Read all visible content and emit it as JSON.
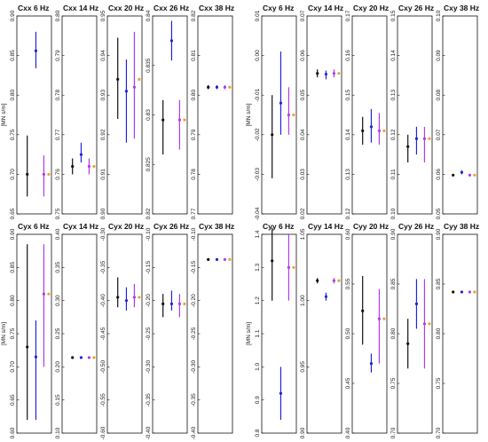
{
  "chart_data": [
    {
      "type": "errorbar",
      "title": "Cxx 6 Hz",
      "ylabel": "[MN s/m]",
      "ylim": [
        0.65,
        0.9
      ],
      "yticks": [
        "0.65",
        "0.70",
        "0.75",
        "0.80",
        "0.85",
        "0.90"
      ],
      "series": [
        {
          "color": "#111111",
          "value": 0.7,
          "low": 0.672,
          "high": 0.749
        },
        {
          "color": "#2222dd",
          "value": 0.856,
          "low": 0.834,
          "high": 0.88
        },
        {
          "color": "#b03af0",
          "value": 0.7,
          "low": 0.672,
          "high": 0.724
        },
        {
          "color": "#e8a33a",
          "value": 0.7,
          "low": 0.7,
          "high": 0.7
        }
      ]
    },
    {
      "type": "errorbar",
      "title": "Cxx 14 Hz",
      "ylabel": "",
      "ylim": [
        0.75,
        0.8
      ],
      "yticks": [
        "0.75",
        "0.76",
        "0.77",
        "0.78",
        "0.79",
        "0.80"
      ],
      "series": [
        {
          "color": "#111111",
          "value": 0.762,
          "low": 0.76,
          "high": 0.764
        },
        {
          "color": "#2222dd",
          "value": 0.765,
          "low": 0.763,
          "high": 0.768
        },
        {
          "color": "#b03af0",
          "value": 0.762,
          "low": 0.76,
          "high": 0.764
        },
        {
          "color": "#e8a33a",
          "value": 0.762,
          "low": 0.762,
          "high": 0.762
        }
      ]
    },
    {
      "type": "errorbar",
      "title": "Cxx 20 Hz",
      "ylabel": "",
      "ylim": [
        0.9,
        0.95
      ],
      "yticks": [
        "0.90",
        "0.91",
        "0.92",
        "0.93",
        "0.94",
        "0.95"
      ],
      "series": [
        {
          "color": "#111111",
          "value": 0.934,
          "low": 0.924,
          "high": 0.9445
        },
        {
          "color": "#2222dd",
          "value": 0.931,
          "low": 0.918,
          "high": 0.939
        },
        {
          "color": "#b03af0",
          "value": 0.932,
          "low": 0.919,
          "high": 0.946
        },
        {
          "color": "#e8a33a",
          "value": 0.934,
          "low": 0.934,
          "high": 0.934
        }
      ]
    },
    {
      "type": "errorbar",
      "title": "Cxx 26 Hz",
      "ylabel": "",
      "ylim": [
        0.82,
        0.84
      ],
      "yticks": [
        "0.82",
        "0.825",
        "0.83",
        "0.835",
        "0.84"
      ],
      "series": [
        {
          "color": "#111111",
          "value": 0.8295,
          "low": 0.826,
          "high": 0.8315
        },
        {
          "color": "#2222dd",
          "value": 0.8375,
          "low": 0.8355,
          "high": 0.8395
        },
        {
          "color": "#b03af0",
          "value": 0.8295,
          "low": 0.8265,
          "high": 0.8315
        },
        {
          "color": "#e8a33a",
          "value": 0.8295,
          "low": 0.8295,
          "high": 0.8295
        }
      ]
    },
    {
      "type": "errorbar",
      "title": "Cxx 38 Hz",
      "ylabel": "",
      "ylim": [
        0.77,
        0.82
      ],
      "yticks": [
        "0.77",
        "0.78",
        "0.79",
        "0.80",
        "0.81",
        "0.82"
      ],
      "series": [
        {
          "color": "#111111",
          "value": 0.802,
          "low": 0.8015,
          "high": 0.8025
        },
        {
          "color": "#2222dd",
          "value": 0.802,
          "low": 0.8015,
          "high": 0.8025
        },
        {
          "color": "#b03af0",
          "value": 0.802,
          "low": 0.8015,
          "high": 0.8025
        },
        {
          "color": "#e8a33a",
          "value": 0.802,
          "low": 0.802,
          "high": 0.802
        }
      ]
    },
    {
      "type": "errorbar",
      "title": "Cxy 6 Hz",
      "ylabel": "[MN s/m]",
      "ylim": [
        -0.04,
        0.01
      ],
      "yticks": [
        "-0.04",
        "-0.03",
        "-0.02",
        "-0.01",
        "0.00",
        "0.01"
      ],
      "series": [
        {
          "color": "#111111",
          "value": -0.02,
          "low": -0.031,
          "high": -0.01
        },
        {
          "color": "#2222dd",
          "value": -0.012,
          "low": -0.02,
          "high": 0.001
        },
        {
          "color": "#b03af0",
          "value": -0.015,
          "low": -0.02,
          "high": -0.008
        },
        {
          "color": "#e8a33a",
          "value": -0.015,
          "low": -0.015,
          "high": -0.015
        }
      ]
    },
    {
      "type": "errorbar",
      "title": "Cxy 14 Hz",
      "ylabel": "",
      "ylim": [
        0.02,
        0.07
      ],
      "yticks": [
        "0.02",
        "0.03",
        "0.04",
        "0.05",
        "0.06",
        "0.07"
      ],
      "series": [
        {
          "color": "#111111",
          "value": 0.0555,
          "low": 0.0545,
          "high": 0.0565
        },
        {
          "color": "#2222dd",
          "value": 0.0553,
          "low": 0.054,
          "high": 0.0562
        },
        {
          "color": "#b03af0",
          "value": 0.0555,
          "low": 0.0545,
          "high": 0.0565
        },
        {
          "color": "#e8a33a",
          "value": 0.0555,
          "low": 0.0555,
          "high": 0.0555
        }
      ]
    },
    {
      "type": "errorbar",
      "title": "Cxy 20 Hz",
      "ylabel": "",
      "ylim": [
        0.12,
        0.17
      ],
      "yticks": [
        "0.12",
        "0.13",
        "0.14",
        "0.15",
        "0.16",
        "0.17"
      ],
      "series": [
        {
          "color": "#111111",
          "value": 0.141,
          "low": 0.1375,
          "high": 0.1445
        },
        {
          "color": "#2222dd",
          "value": 0.142,
          "low": 0.138,
          "high": 0.1465
        },
        {
          "color": "#b03af0",
          "value": 0.141,
          "low": 0.1375,
          "high": 0.1455
        },
        {
          "color": "#e8a33a",
          "value": 0.141,
          "low": 0.141,
          "high": 0.141
        }
      ]
    },
    {
      "type": "errorbar",
      "title": "Cxy 26 Hz",
      "ylabel": "",
      "ylim": [
        0.1,
        0.15
      ],
      "yticks": [
        "0.10",
        "0.11",
        "0.12",
        "0.13",
        "0.14",
        "0.15"
      ],
      "series": [
        {
          "color": "#111111",
          "value": 0.117,
          "low": 0.113,
          "high": 0.12
        },
        {
          "color": "#2222dd",
          "value": 0.119,
          "low": 0.115,
          "high": 0.122
        },
        {
          "color": "#b03af0",
          "value": 0.119,
          "low": 0.113,
          "high": 0.122
        },
        {
          "color": "#e8a33a",
          "value": 0.119,
          "low": 0.119,
          "high": 0.119
        }
      ]
    },
    {
      "type": "errorbar",
      "title": "Cxy 38 Hz",
      "ylabel": "",
      "ylim": [
        0.05,
        0.1
      ],
      "yticks": [
        "0.05",
        "0.06",
        "0.07",
        "0.08",
        "0.09",
        "0.10"
      ],
      "series": [
        {
          "color": "#111111",
          "value": 0.0598,
          "low": 0.0595,
          "high": 0.0601
        },
        {
          "color": "#2222dd",
          "value": 0.0605,
          "low": 0.06,
          "high": 0.061
        },
        {
          "color": "#b03af0",
          "value": 0.0598,
          "low": 0.0595,
          "high": 0.0601
        },
        {
          "color": "#e8a33a",
          "value": 0.0598,
          "low": 0.0598,
          "high": 0.0598
        }
      ]
    },
    {
      "type": "errorbar",
      "title": "Cyx 6 Hz",
      "ylabel": "[MN s/m]",
      "ylim": [
        0.6,
        0.9
      ],
      "yticks": [
        "0.60",
        "0.65",
        "0.70",
        "0.75",
        "0.80",
        "0.85",
        "0.90"
      ],
      "series": [
        {
          "color": "#111111",
          "value": 0.73,
          "low": 0.62,
          "high": 0.885
        },
        {
          "color": "#2222dd",
          "value": 0.715,
          "low": 0.62,
          "high": 0.77
        },
        {
          "color": "#b03af0",
          "value": 0.81,
          "low": 0.7,
          "high": 0.885
        },
        {
          "color": "#e8a33a",
          "value": 0.81,
          "low": 0.81,
          "high": 0.81
        }
      ]
    },
    {
      "type": "errorbar",
      "title": "Cyx 14 Hz",
      "ylabel": "",
      "ylim": [
        0.1,
        0.4
      ],
      "yticks": [
        "0.10",
        "0.15",
        "0.20",
        "0.25",
        "0.30",
        "0.35",
        "0.40"
      ],
      "series": [
        {
          "color": "#111111",
          "value": 0.214,
          "low": 0.213,
          "high": 0.215
        },
        {
          "color": "#2222dd",
          "value": 0.214,
          "low": 0.213,
          "high": 0.215
        },
        {
          "color": "#b03af0",
          "value": 0.214,
          "low": 0.213,
          "high": 0.215
        },
        {
          "color": "#e8a33a",
          "value": 0.214,
          "low": 0.214,
          "high": 0.214
        }
      ]
    },
    {
      "type": "errorbar",
      "title": "Cyx 20 Hz",
      "ylabel": "",
      "ylim": [
        -0.6,
        -0.3
      ],
      "yticks": [
        "-0.60",
        "-0.55",
        "-0.50",
        "-0.45",
        "-0.40",
        "-0.35",
        "-0.30"
      ],
      "series": [
        {
          "color": "#111111",
          "value": -0.395,
          "low": -0.41,
          "high": -0.365
        },
        {
          "color": "#2222dd",
          "value": -0.4,
          "low": -0.415,
          "high": -0.38
        },
        {
          "color": "#b03af0",
          "value": -0.395,
          "low": -0.41,
          "high": -0.375
        },
        {
          "color": "#e8a33a",
          "value": -0.395,
          "low": -0.395,
          "high": -0.395
        }
      ]
    },
    {
      "type": "errorbar",
      "title": "Cyx 26 Hz",
      "ylabel": "",
      "ylim": [
        -0.4,
        -0.1
      ],
      "yticks": [
        "-0.40",
        "-0.35",
        "-0.30",
        "-0.25",
        "-0.20",
        "-0.15",
        "-0.10"
      ],
      "series": [
        {
          "color": "#111111",
          "value": -0.205,
          "low": -0.225,
          "high": -0.19
        },
        {
          "color": "#2222dd",
          "value": -0.205,
          "low": -0.215,
          "high": -0.185
        },
        {
          "color": "#b03af0",
          "value": -0.205,
          "low": -0.225,
          "high": -0.19
        },
        {
          "color": "#e8a33a",
          "value": -0.205,
          "low": -0.205,
          "high": -0.205
        }
      ]
    },
    {
      "type": "errorbar",
      "title": "Cyx 38 Hz",
      "ylabel": "",
      "ylim": [
        -0.4,
        -0.1
      ],
      "yticks": [
        "-0.40",
        "-0.35",
        "-0.30",
        "-0.25",
        "-0.20",
        "-0.15",
        "-0.10"
      ],
      "series": [
        {
          "color": "#111111",
          "value": -0.138,
          "low": -0.138,
          "high": -0.138
        },
        {
          "color": "#2222dd",
          "value": -0.138,
          "low": -0.138,
          "high": -0.138
        },
        {
          "color": "#b03af0",
          "value": -0.138,
          "low": -0.138,
          "high": -0.138
        },
        {
          "color": "#e8a33a",
          "value": -0.138,
          "low": -0.138,
          "high": -0.138
        }
      ]
    },
    {
      "type": "errorbar",
      "title": "Cyy 6 Hz",
      "ylabel": "[MN s/m]",
      "ylim": [
        0.8,
        1.4
      ],
      "yticks": [
        "0.8",
        "0.9",
        "1.0",
        "1.1",
        "1.2",
        "1.3",
        "1.4"
      ],
      "series": [
        {
          "color": "#111111",
          "value": 1.32,
          "low": 1.2,
          "high": 1.42
        },
        {
          "color": "#2222dd",
          "value": 0.92,
          "low": 0.84,
          "high": 1.0
        },
        {
          "color": "#b03af0",
          "value": 1.3,
          "low": 1.2,
          "high": 1.4
        },
        {
          "color": "#e8a33a",
          "value": 1.3,
          "low": 1.3,
          "high": 1.3
        }
      ]
    },
    {
      "type": "errorbar",
      "title": "Cyy 14 Hz",
      "ylabel": "",
      "ylim": [
        0.9,
        1.05
      ],
      "yticks": [
        "0.90",
        "0.95",
        "1.00",
        "1.05"
      ],
      "series": [
        {
          "color": "#111111",
          "value": 1.015,
          "low": 1.013,
          "high": 1.017
        },
        {
          "color": "#2222dd",
          "value": 1.003,
          "low": 1.0,
          "high": 1.006
        },
        {
          "color": "#b03af0",
          "value": 1.015,
          "low": 1.013,
          "high": 1.017
        },
        {
          "color": "#e8a33a",
          "value": 1.015,
          "low": 1.015,
          "high": 1.015
        }
      ]
    },
    {
      "type": "errorbar",
      "title": "Cyy 20 Hz",
      "ylabel": "",
      "ylim": [
        0.4,
        0.6
      ],
      "yticks": [
        "0.40",
        "0.45",
        "0.50",
        "0.55",
        "0.60"
      ],
      "series": [
        {
          "color": "#111111",
          "value": 0.523,
          "low": 0.489,
          "high": 0.558
        },
        {
          "color": "#2222dd",
          "value": 0.47,
          "low": 0.461,
          "high": 0.48
        },
        {
          "color": "#b03af0",
          "value": 0.515,
          "low": 0.47,
          "high": 0.545
        },
        {
          "color": "#e8a33a",
          "value": 0.515,
          "low": 0.515,
          "high": 0.515
        }
      ]
    },
    {
      "type": "errorbar",
      "title": "Cyy 26 Hz",
      "ylabel": "",
      "ylim": [
        0.7,
        0.9
      ],
      "yticks": [
        "0.70",
        "0.75",
        "0.80",
        "0.85",
        "0.90"
      ],
      "series": [
        {
          "color": "#111111",
          "value": 0.79,
          "low": 0.765,
          "high": 0.815
        },
        {
          "color": "#2222dd",
          "value": 0.83,
          "low": 0.805,
          "high": 0.855
        },
        {
          "color": "#b03af0",
          "value": 0.81,
          "low": 0.765,
          "high": 0.855
        },
        {
          "color": "#e8a33a",
          "value": 0.81,
          "low": 0.81,
          "high": 0.81
        }
      ]
    },
    {
      "type": "errorbar",
      "title": "Cyy 38 Hz",
      "ylabel": "",
      "ylim": [
        0.7,
        0.9
      ],
      "yticks": [
        "0.70",
        "0.75",
        "0.80",
        "0.85",
        "0.90"
      ],
      "series": [
        {
          "color": "#111111",
          "value": 0.842,
          "low": 0.841,
          "high": 0.843
        },
        {
          "color": "#2222dd",
          "value": 0.842,
          "low": 0.841,
          "high": 0.843
        },
        {
          "color": "#b03af0",
          "value": 0.842,
          "low": 0.841,
          "high": 0.843
        },
        {
          "color": "#e8a33a",
          "value": 0.842,
          "low": 0.842,
          "high": 0.842
        }
      ]
    }
  ]
}
